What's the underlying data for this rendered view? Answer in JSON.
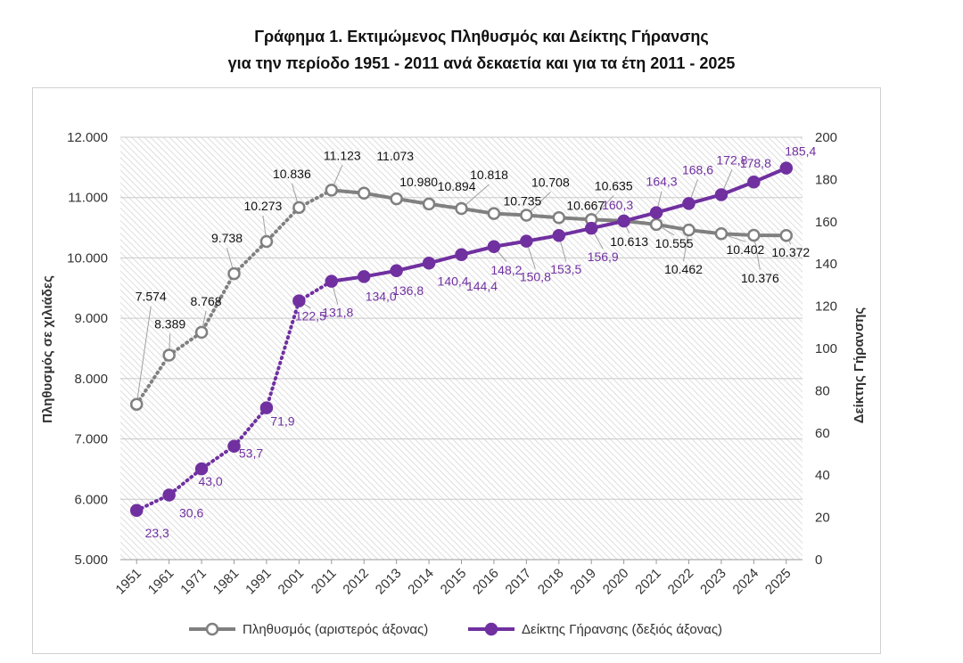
{
  "header": {
    "title_line1": "Γράφημα 1. Εκτιμώμενος Πληθυσμός και Δείκτης Γήρανσης",
    "title_line2": "για την περίοδο 1951 - 2011 ανά δεκαετία και για τα έτη 2011 - 2025"
  },
  "chart_data": {
    "type": "line",
    "categories": [
      "1951",
      "1961",
      "1971",
      "1981",
      "1991",
      "2001",
      "2011",
      "2012",
      "2013",
      "2014",
      "2015",
      "2016",
      "2017",
      "2018",
      "2019",
      "2020",
      "2021",
      "2022",
      "2023",
      "2024",
      "2025"
    ],
    "series": [
      {
        "name": "Πληθυσμός (αριστερός άξονας)",
        "axis": "left",
        "color": "#808080",
        "values": [
          7574,
          8389,
          8768,
          9738,
          10273,
          10836,
          11123,
          11073,
          10980,
          10894,
          10818,
          10735,
          10708,
          10667,
          10635,
          10613,
          10555,
          10462,
          10402,
          10376,
          10372
        ],
        "labels": [
          "7.574",
          "8.389",
          "8.768",
          "9.738",
          "10.273",
          "10.836",
          "11.123",
          "11.073",
          "10.980",
          "10.894",
          "10.818",
          "10.735",
          "10.708",
          "10.667",
          "10.635",
          "10.613",
          "10.555",
          "10.462",
          "10.402",
          "10.376",
          "10.372"
        ]
      },
      {
        "name": "Δείκτης Γήρανσης (δεξιός άξονας)",
        "axis": "right",
        "color": "#7030a0",
        "values": [
          23.3,
          30.6,
          43.0,
          53.7,
          71.9,
          122.5,
          131.8,
          134.0,
          136.8,
          140.4,
          144.4,
          148.2,
          150.8,
          153.5,
          156.9,
          160.3,
          164.3,
          168.6,
          172.8,
          178.8,
          185.4
        ],
        "labels": [
          "23,3",
          "30,6",
          "43,0",
          "53,7",
          "71,9",
          "122,5",
          "131,8",
          "134,0",
          "136,8",
          "140,4",
          "144,4",
          "148,2",
          "150,8",
          "153,5",
          "156,9",
          "160,3",
          "164,3",
          "168,6",
          "172,8",
          "178,8",
          "185,4"
        ]
      }
    ],
    "ylabel_left": "Πληθυσμός σε χιλιάδες",
    "ylabel_right": "Δείκτης Γήρανσης",
    "ylim_left": [
      5000,
      12000
    ],
    "ylim_right": [
      0,
      200
    ],
    "yticks_left": [
      "5.000",
      "6.000",
      "7.000",
      "8.000",
      "9.000",
      "10.000",
      "11.000",
      "12.000"
    ],
    "yticks_right": [
      "0",
      "20",
      "40",
      "60",
      "80",
      "100",
      "120",
      "140",
      "160",
      "180",
      "200"
    ],
    "dotted_segment_until_index": 6,
    "grid": true,
    "legend": "bottom"
  }
}
